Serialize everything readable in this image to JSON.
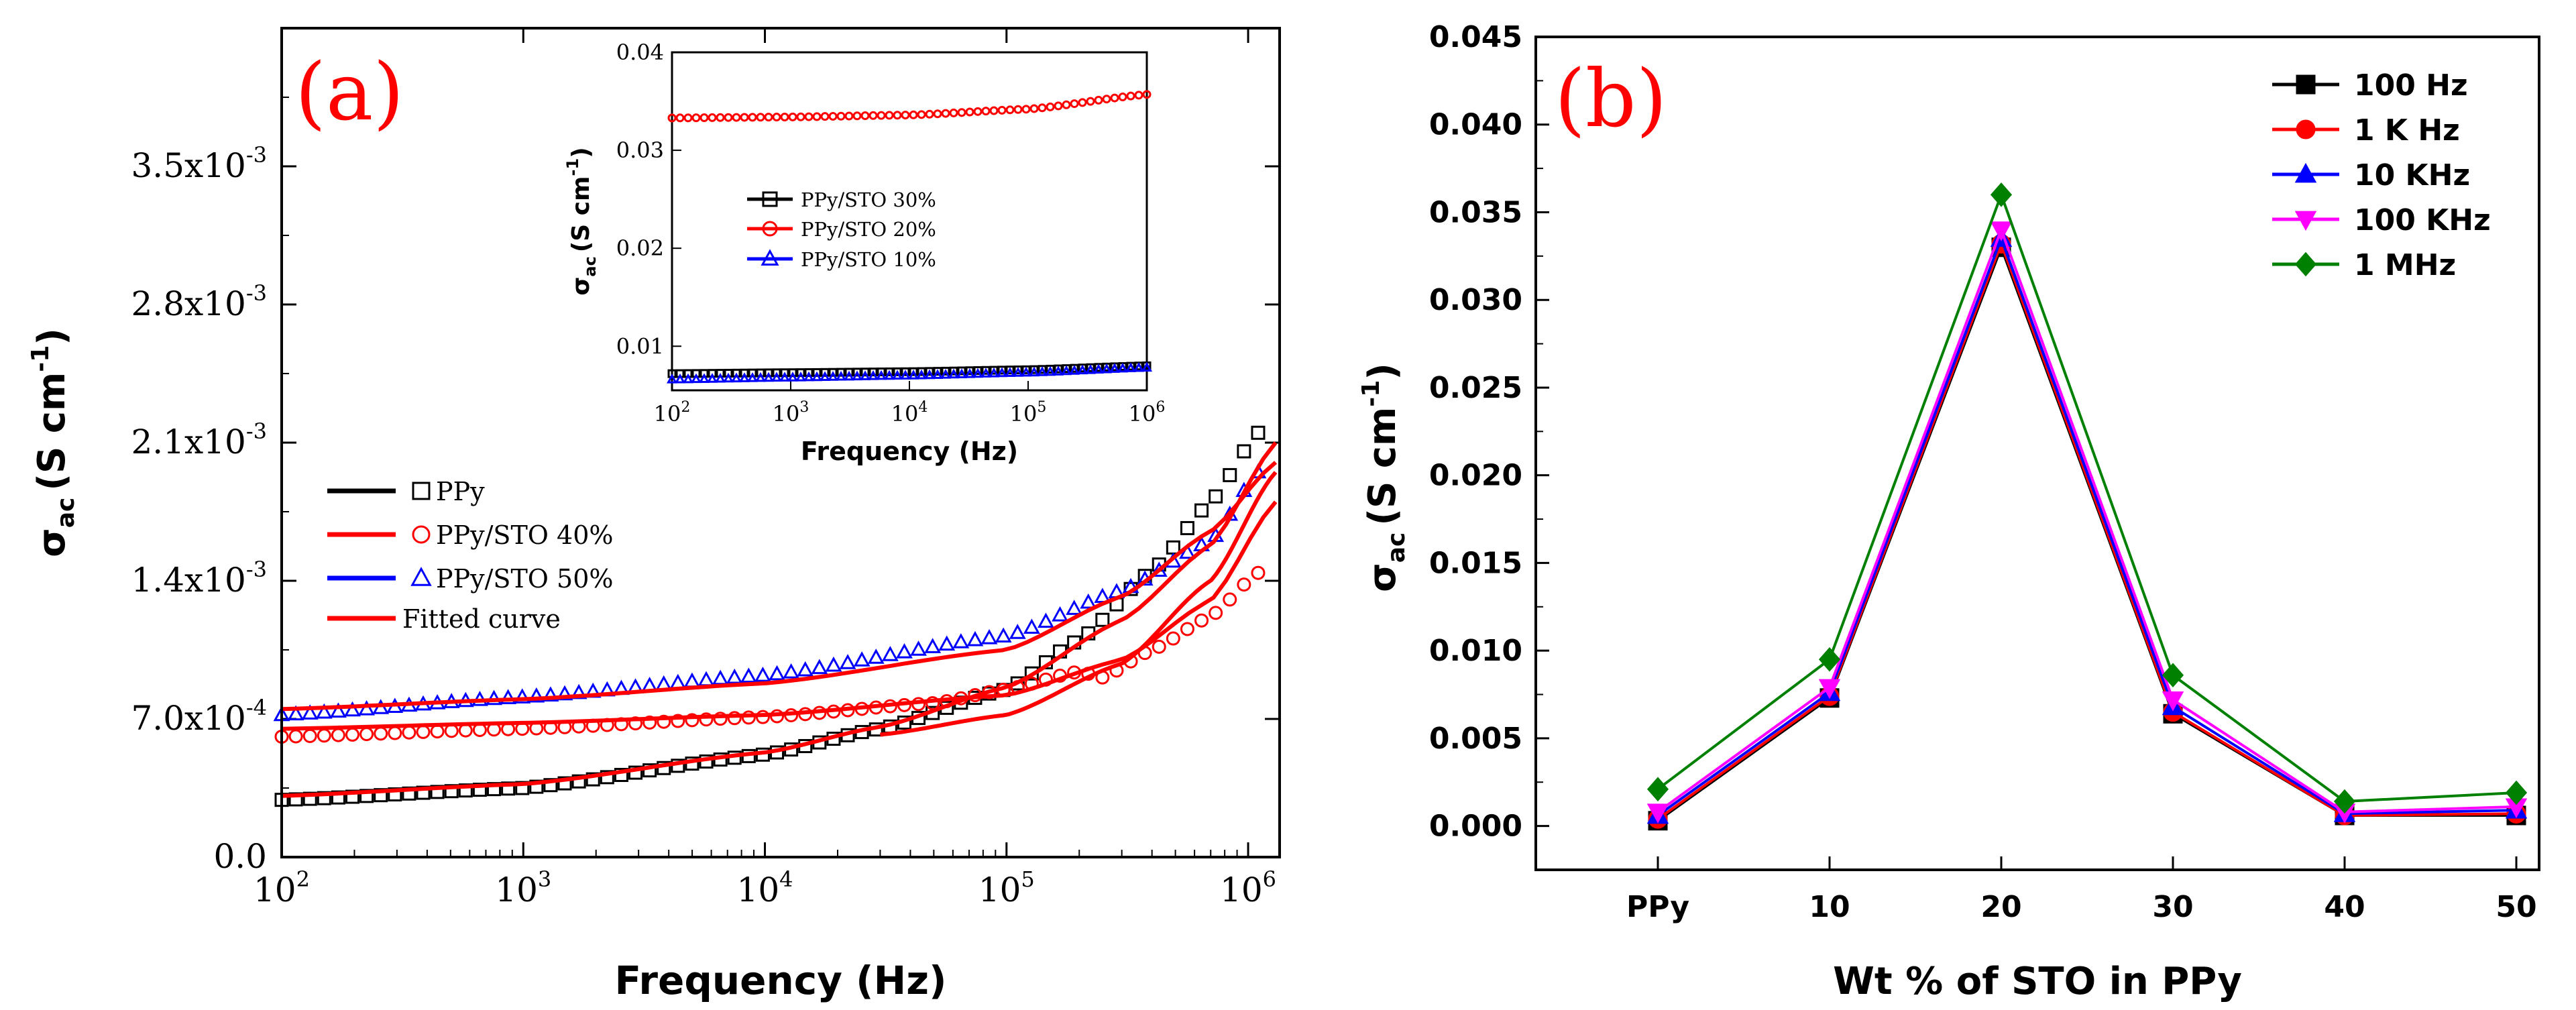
{
  "panel_labels": {
    "a": "(a)",
    "b": "(b)"
  },
  "colors": {
    "black": "#000000",
    "red": "#ff0000",
    "blue": "#0000ff",
    "magenta": "#ff00ff",
    "green": "#008000"
  },
  "chart_data": [
    {
      "id": "a-main",
      "type": "scatter",
      "x_scale": "log",
      "xlim": [
        100,
        1350000
      ],
      "ylim": [
        0,
        0.0042
      ],
      "xlabel": "Frequency (Hz)",
      "ylabel": {
        "base": "σ",
        "sub": "ac",
        "rest": "(S cm",
        "sup": "-1",
        "close": ")"
      },
      "x_ticks": [
        {
          "value": 100,
          "base": "10",
          "exp": "2"
        },
        {
          "value": 1000,
          "base": "10",
          "exp": "3"
        },
        {
          "value": 10000,
          "base": "10",
          "exp": "4"
        },
        {
          "value": 100000,
          "base": "10",
          "exp": "5"
        },
        {
          "value": 1000000,
          "base": "10",
          "exp": "6"
        }
      ],
      "y_ticks": [
        {
          "value": 0,
          "mant": "0.0",
          "exp": ""
        },
        {
          "value": 0.0007,
          "mant": "7.0x10",
          "exp": "-4"
        },
        {
          "value": 0.0014,
          "mant": "1.4x10",
          "exp": "-3"
        },
        {
          "value": 0.0021,
          "mant": "2.1x10",
          "exp": "-3"
        },
        {
          "value": 0.0028,
          "mant": "2.8x10",
          "exp": "-3"
        },
        {
          "value": 0.0035,
          "mant": "3.5x10",
          "exp": "-3"
        }
      ],
      "legend": [
        {
          "label": "PPy",
          "marker": "square",
          "color": "#000000"
        },
        {
          "label": "PPy/STO 40%",
          "marker": "circle",
          "color": "#ff0000"
        },
        {
          "label": "PPy/STO 50%",
          "marker": "triangle",
          "color": "#0000ff"
        },
        {
          "label": "Fitted curve",
          "marker": "line",
          "color": "#ff0000"
        }
      ],
      "series": [
        {
          "name": "PPy",
          "color": "#000000",
          "marker": "square",
          "x": [
            100,
            1000,
            10000,
            30000,
            100000,
            200000,
            400000,
            700000,
            1100000
          ],
          "y": [
            0.00029,
            0.00035,
            0.00052,
            0.00065,
            0.00085,
            0.0011,
            0.00145,
            0.0018,
            0.00215
          ]
        },
        {
          "name": "PPy/STO 40%",
          "color": "#ff0000",
          "marker": "circle",
          "x": [
            100,
            1000,
            10000,
            50000,
            100000,
            200000,
            250000,
            400000,
            700000,
            1100000
          ],
          "y": [
            0.00061,
            0.00065,
            0.00071,
            0.00078,
            0.00085,
            0.00094,
            0.00091,
            0.00105,
            0.00122,
            0.00144
          ]
        },
        {
          "name": "PPy/STO 50%",
          "color": "#0000ff",
          "marker": "triangle",
          "x": [
            100,
            1000,
            10000,
            100000,
            300000,
            700000,
            1100000
          ],
          "y": [
            0.00072,
            0.00081,
            0.00092,
            0.00112,
            0.00135,
            0.0016,
            0.00195
          ]
        }
      ],
      "fitted_curves": [
        {
          "name": "Fitted curve (PPy)",
          "x": [
            100,
            1000,
            10000,
            30000,
            100000,
            300000,
            700000,
            1300000
          ],
          "y": [
            0.00031,
            0.00037,
            0.00053,
            0.00066,
            0.00086,
            0.0012,
            0.00158,
            0.0021
          ]
        },
        {
          "name": "Fitted curve (PPy/STO 40%)",
          "x": [
            100,
            1000,
            10000,
            100000,
            300000,
            700000,
            1300000
          ],
          "y": [
            0.00065,
            0.00068,
            0.00072,
            0.00082,
            0.001,
            0.0013,
            0.0018
          ]
        },
        {
          "name": "Fitted curve (PPy/STO 50%)",
          "x": [
            100,
            1000,
            10000,
            100000,
            300000,
            700000,
            1300000
          ],
          "y": [
            0.00075,
            0.0008,
            0.00088,
            0.00105,
            0.00132,
            0.00165,
            0.002
          ]
        },
        {
          "name": "Fitted curve (steep)",
          "x": [
            30000,
            100000,
            300000,
            700000,
            1300000
          ],
          "y": [
            0.00062,
            0.00072,
            0.00098,
            0.0014,
            0.00195
          ]
        }
      ]
    },
    {
      "id": "a-inset",
      "type": "scatter",
      "x_scale": "log",
      "xlim": [
        100,
        1000000
      ],
      "ylim": [
        0.0055,
        0.04
      ],
      "xlabel": "Frequency (Hz)",
      "ylabel": {
        "base": "σ",
        "sub": "ac",
        "rest": "(S cm",
        "sup": "-1",
        "close": ")"
      },
      "x_ticks": [
        {
          "value": 100,
          "base": "10",
          "exp": "2"
        },
        {
          "value": 1000,
          "base": "10",
          "exp": "3"
        },
        {
          "value": 10000,
          "base": "10",
          "exp": "4"
        },
        {
          "value": 100000,
          "base": "10",
          "exp": "5"
        },
        {
          "value": 1000000,
          "base": "10",
          "exp": "6"
        }
      ],
      "y_ticks": [
        {
          "value": 0.01,
          "label": "0.01"
        },
        {
          "value": 0.02,
          "label": "0.02"
        },
        {
          "value": 0.03,
          "label": "0.03"
        },
        {
          "value": 0.04,
          "label": "0.04"
        }
      ],
      "legend": [
        {
          "label": "PPy/STO 30%",
          "marker": "square",
          "color": "#000000"
        },
        {
          "label": "PPy/STO 20%",
          "marker": "circle",
          "color": "#ff0000"
        },
        {
          "label": "PPy/STO 10%",
          "marker": "triangle",
          "color": "#0000ff"
        }
      ],
      "series": [
        {
          "name": "PPy/STO 30%",
          "color": "#000000",
          "marker": "square",
          "x": [
            100,
            1000,
            10000,
            100000,
            1000000
          ],
          "y": [
            0.0072,
            0.0073,
            0.0074,
            0.0076,
            0.008
          ]
        },
        {
          "name": "PPy/STO 20%",
          "color": "#ff0000",
          "marker": "circle",
          "x": [
            100,
            1000,
            10000,
            100000,
            1000000
          ],
          "y": [
            0.0333,
            0.0334,
            0.0336,
            0.0342,
            0.0357
          ]
        },
        {
          "name": "PPy/STO 10%",
          "color": "#0000ff",
          "marker": "triangle",
          "x": [
            100,
            1000,
            10000,
            100000,
            1000000
          ],
          "y": [
            0.0066,
            0.0068,
            0.007,
            0.0073,
            0.0078
          ]
        }
      ]
    },
    {
      "id": "b",
      "type": "line",
      "categories": [
        "PPy",
        "10",
        "20",
        "30",
        "40",
        "50"
      ],
      "xlabel": "Wt % of STO in PPy",
      "ylabel": {
        "base": "σ",
        "sub": "ac",
        "rest": "(S cm",
        "sup": "-1",
        "close": ")"
      },
      "ylim": [
        -0.0025,
        0.045
      ],
      "y_ticks": [
        "0.000",
        "0.005",
        "0.010",
        "0.015",
        "0.020",
        "0.025",
        "0.030",
        "0.035",
        "0.040",
        "0.045"
      ],
      "series": [
        {
          "name": "100 Hz",
          "color": "#000000",
          "marker": "square",
          "values": [
            0.0003,
            0.0073,
            0.033,
            0.0064,
            0.0006,
            0.0006
          ]
        },
        {
          "name": "1 K Hz",
          "color": "#ff0000",
          "marker": "circle",
          "values": [
            0.0004,
            0.0074,
            0.0332,
            0.0065,
            0.0006,
            0.0007
          ]
        },
        {
          "name": "10 KHz",
          "color": "#0000ff",
          "marker": "triangle",
          "values": [
            0.0006,
            0.0076,
            0.0335,
            0.0068,
            0.0007,
            0.0009
          ]
        },
        {
          "name": "100 KHz",
          "color": "#ff00ff",
          "marker": "triangle-down",
          "values": [
            0.0008,
            0.0079,
            0.034,
            0.0072,
            0.0008,
            0.0011
          ]
        },
        {
          "name": "1 MHz",
          "color": "#008000",
          "marker": "diamond",
          "values": [
            0.0021,
            0.0095,
            0.036,
            0.0086,
            0.0014,
            0.0019
          ]
        }
      ]
    }
  ]
}
